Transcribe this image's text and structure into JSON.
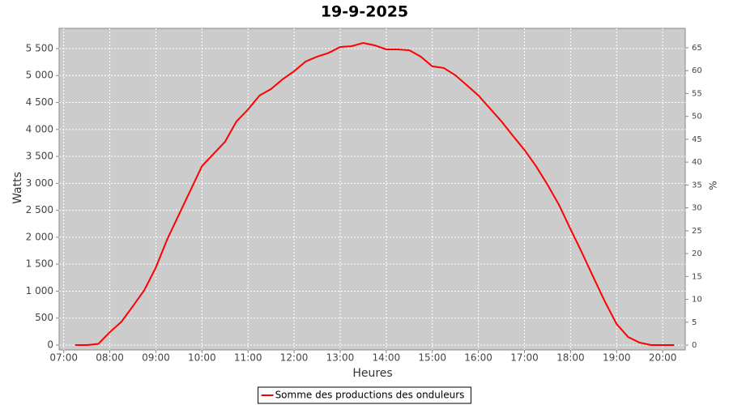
{
  "chart_data": {
    "type": "line",
    "title": "19-9-2025",
    "x_label": "Heures",
    "y_label": "Watts",
    "y2_label": "%",
    "x": [
      7.25,
      7.5,
      7.75,
      8.0,
      8.25,
      8.5,
      8.75,
      9.0,
      9.25,
      9.5,
      9.75,
      10.0,
      10.25,
      10.5,
      10.75,
      11.0,
      11.25,
      11.5,
      11.75,
      12.0,
      12.25,
      12.5,
      12.75,
      13.0,
      13.25,
      13.5,
      13.75,
      14.0,
      14.25,
      14.5,
      14.75,
      15.0,
      15.25,
      15.5,
      15.75,
      16.0,
      16.25,
      16.5,
      16.75,
      17.0,
      17.25,
      17.5,
      17.75,
      18.0,
      18.25,
      18.5,
      18.75,
      19.0,
      19.25,
      19.5,
      19.75,
      20.0,
      20.25
    ],
    "series": [
      {
        "name": "Somme des productions des onduleurs",
        "color": "#ff0000",
        "values": [
          0,
          0,
          20,
          240,
          430,
          720,
          1020,
          1440,
          1970,
          2420,
          2870,
          3320,
          3545,
          3770,
          4150,
          4370,
          4630,
          4750,
          4930,
          5080,
          5260,
          5350,
          5420,
          5530,
          5545,
          5605,
          5560,
          5485,
          5485,
          5470,
          5350,
          5170,
          5140,
          5005,
          4820,
          4630,
          4390,
          4150,
          3880,
          3620,
          3320,
          2975,
          2600,
          2150,
          1710,
          1250,
          800,
          390,
          150,
          45,
          0,
          0,
          0
        ]
      }
    ],
    "xlim": [
      6.9,
      20.49
    ],
    "xticks": [
      {
        "value": 7,
        "label": "07:00"
      },
      {
        "value": 8,
        "label": "08:00"
      },
      {
        "value": 9,
        "label": "09:00"
      },
      {
        "value": 10,
        "label": "10:00"
      },
      {
        "value": 11,
        "label": "11:00"
      },
      {
        "value": 12,
        "label": "12:00"
      },
      {
        "value": 13,
        "label": "13:00"
      },
      {
        "value": 14,
        "label": "14:00"
      },
      {
        "value": 15,
        "label": "15:00"
      },
      {
        "value": 16,
        "label": "16:00"
      },
      {
        "value": 17,
        "label": "17:00"
      },
      {
        "value": 18,
        "label": "18:00"
      },
      {
        "value": 19,
        "label": "19:00"
      },
      {
        "value": 20,
        "label": "20:00"
      }
    ],
    "ylim": [
      -90,
      5875
    ],
    "yticks": [
      0,
      500,
      {
        "value": 1000,
        "label": "1 000"
      },
      {
        "value": 1500,
        "label": "1 500"
      },
      {
        "value": 2000,
        "label": "2 000"
      },
      {
        "value": 2500,
        "label": "2 500"
      },
      {
        "value": 3000,
        "label": "3 000"
      },
      {
        "value": 3500,
        "label": "3 500"
      },
      {
        "value": 4000,
        "label": "4 000"
      },
      {
        "value": 4500,
        "label": "4 500"
      },
      {
        "value": 5000,
        "label": "5 000"
      },
      {
        "value": 5500,
        "label": "5 500"
      }
    ],
    "y2lim": [
      -1.06,
      69.25
    ],
    "y2ticks": [
      0,
      5,
      10,
      15,
      20,
      25,
      30,
      35,
      40,
      45,
      50,
      55,
      60,
      65
    ],
    "grid": true
  }
}
